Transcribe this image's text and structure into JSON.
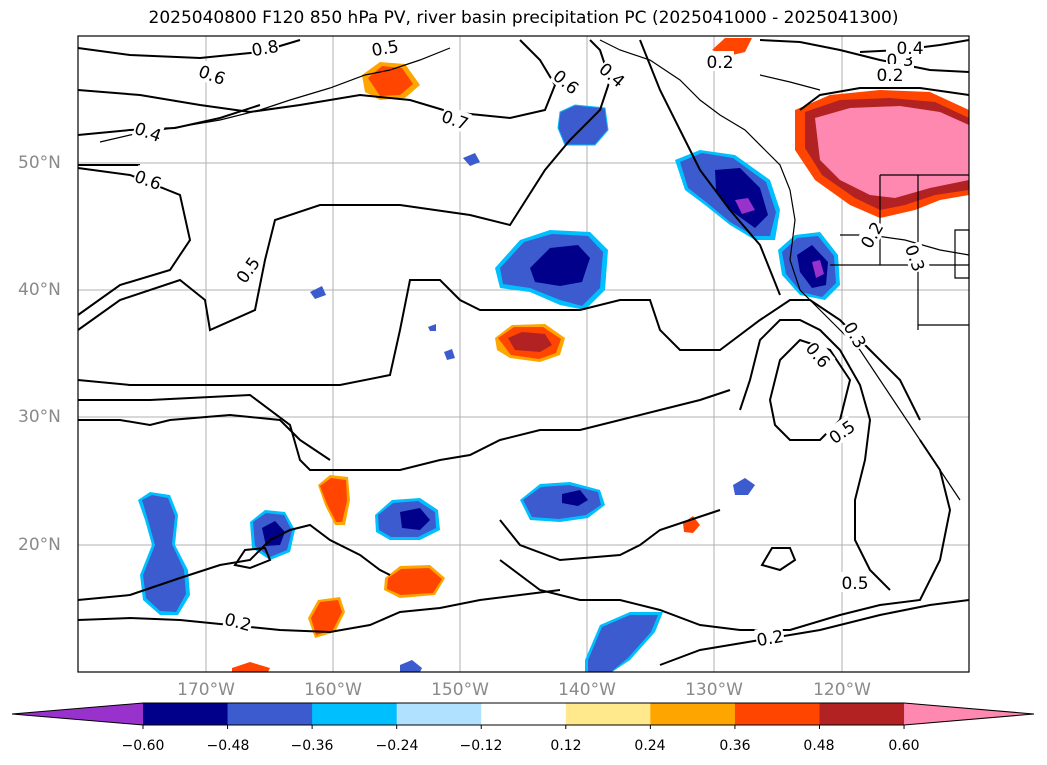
{
  "title": "2025040800 F120 850 hPa PV, river basin precipitation PC (2025041000 - 2025041300)",
  "map": {
    "projection": "PlateCarree",
    "lon_range": [
      -180,
      -110
    ],
    "lat_range": [
      10,
      60
    ],
    "gridline_color": "#b0b0b0",
    "lat_labels": [
      "50°N",
      "40°N",
      "30°N",
      "20°N"
    ],
    "lon_labels": [
      "170°W",
      "160°W",
      "150°W",
      "140°W",
      "130°W",
      "120°W"
    ],
    "contour_color": "#000000",
    "contour_labels": [
      "0.8",
      "0.6",
      "0.5",
      "0.7",
      "0.6",
      "0.4",
      "0.2",
      "0.4",
      "0.3",
      "0.2",
      "0.4",
      "0.6",
      "0.5",
      "0.2",
      "0.3",
      "0.3",
      "0.6",
      "0.5",
      "0.5",
      "0.2",
      "0.2"
    ]
  },
  "colorbar": {
    "ticks": [
      "−0.60",
      "−0.48",
      "−0.36",
      "−0.24",
      "−0.12",
      "0.12",
      "0.24",
      "0.36",
      "0.48",
      "0.60"
    ],
    "colors": [
      "#9932cc",
      "#00008b",
      "#3b5bcf",
      "#00bfff",
      "#b0e2ff",
      "#ffffff",
      "#ffe98c",
      "#ffa500",
      "#ff4500",
      "#b22222",
      "#ff88b0"
    ],
    "extend": "both"
  }
}
